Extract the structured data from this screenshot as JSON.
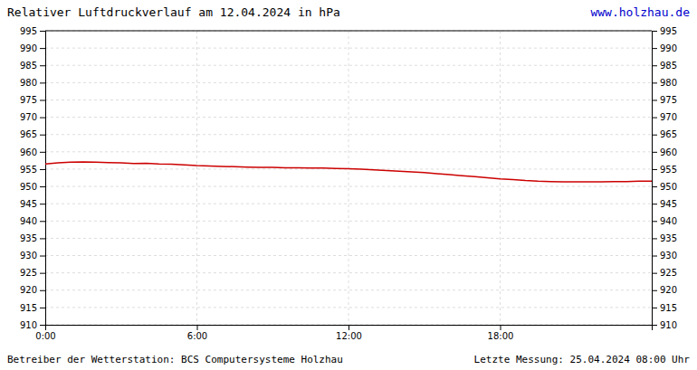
{
  "chart_data": {
    "type": "line",
    "title": "Relativer Luftdruckverlauf am 12.04.2024 in hPa",
    "annotations": [
      "www.holzhau.de",
      "Betreiber der Wetterstation: BCS Computersysteme Holzhau",
      "Letzte Messung: 25.04.2024 08:00 Uhr"
    ],
    "x": [
      0,
      30,
      60,
      90,
      120,
      150,
      180,
      210,
      240,
      270,
      300,
      330,
      360,
      390,
      420,
      450,
      480,
      510,
      540,
      570,
      600,
      630,
      660,
      690,
      720,
      750,
      780,
      810,
      840,
      870,
      900,
      930,
      960,
      990,
      1020,
      1050,
      1080,
      1110,
      1140,
      1170,
      1200,
      1230,
      1260,
      1290,
      1320,
      1350,
      1380,
      1410,
      1440
    ],
    "values": [
      956.5,
      956.8,
      957.0,
      957.1,
      957.0,
      956.9,
      956.8,
      956.6,
      956.7,
      956.5,
      956.4,
      956.2,
      956.0,
      955.9,
      955.8,
      955.7,
      955.6,
      955.5,
      955.5,
      955.4,
      955.4,
      955.3,
      955.3,
      955.2,
      955.1,
      955.0,
      954.8,
      954.6,
      954.4,
      954.2,
      954.0,
      953.7,
      953.4,
      953.1,
      952.8,
      952.5,
      952.2,
      952.0,
      951.7,
      951.5,
      951.4,
      951.3,
      951.3,
      951.3,
      951.3,
      951.4,
      951.4,
      951.5,
      951.5
    ],
    "color": "#cc0000",
    "xlim": [
      0,
      1440
    ],
    "xticks": [
      {
        "value": 0,
        "label": "0:00"
      },
      {
        "value": 360,
        "label": "6:00"
      },
      {
        "value": 720,
        "label": "12:00"
      },
      {
        "value": 1080,
        "label": "18:00"
      }
    ],
    "ylim": [
      910,
      995
    ],
    "yticks": [
      910,
      915,
      920,
      925,
      930,
      935,
      940,
      945,
      950,
      955,
      960,
      965,
      970,
      975,
      980,
      985,
      990,
      995
    ],
    "y2lim": [
      910,
      995
    ],
    "y2ticks": [
      910,
      915,
      920,
      925,
      930,
      935,
      940,
      945,
      950,
      955,
      960,
      965,
      970,
      975,
      980,
      985,
      990,
      995
    ],
    "grid": true
  }
}
